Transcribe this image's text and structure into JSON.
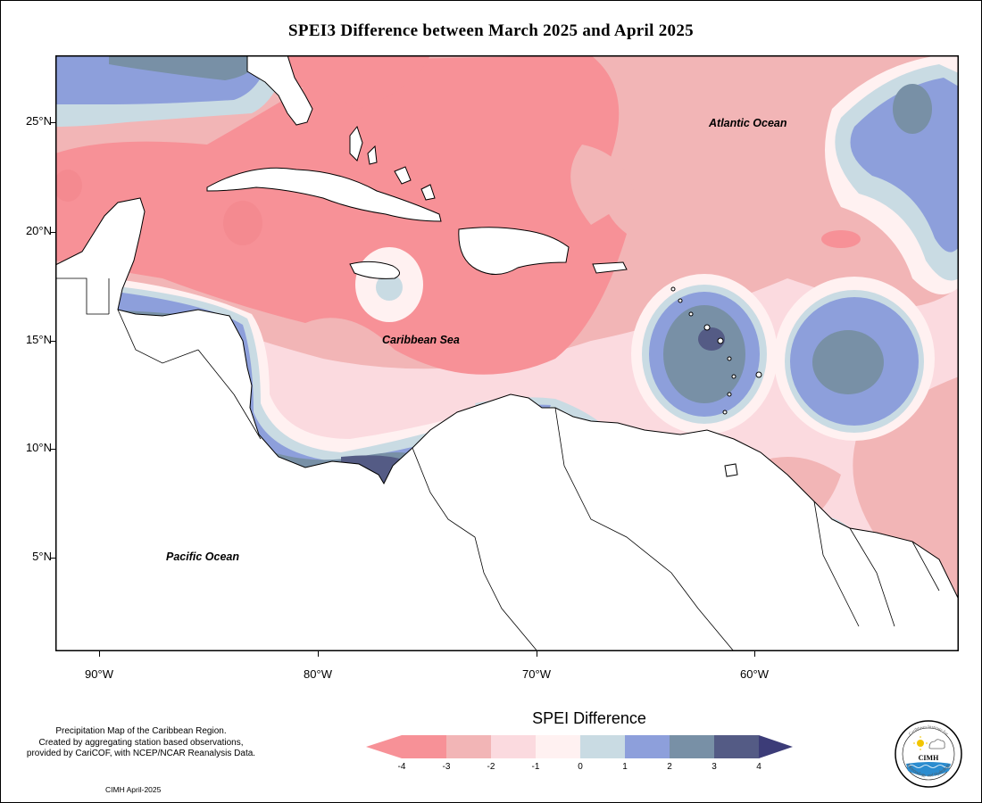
{
  "title": "SPEI3 Difference between March 2025 and April 2025",
  "lat_ticks": [
    "25°N",
    "20°N",
    "15°N",
    "10°N",
    "5°N"
  ],
  "lon_ticks": [
    "90°W",
    "80°W",
    "70°W",
    "60°W"
  ],
  "labels": {
    "atlantic": "Atlantic Ocean",
    "caribbean": "Caribbean Sea",
    "pacific": "Pacific Ocean"
  },
  "legend": {
    "title": "SPEI Difference",
    "ticks": [
      "-4",
      "-3",
      "-2",
      "-1",
      "0",
      "1",
      "2",
      "3",
      "4"
    ],
    "colors": [
      "#f79197",
      "#f2b5b6",
      "#fbdadf",
      "#fff1f1",
      "#c9dbe3",
      "#8d9fdb",
      "#7890a6",
      "#545b85",
      "#3c3c78"
    ]
  },
  "description": [
    "Precipitation Map of the Caribbean Region.",
    "Created by aggregating station based observations,",
    "provided by CariCOF, with NCEP/NCAR Reanalysis Data."
  ],
  "credit": "CIMH April-2025",
  "logo": {
    "top_text": "Caribbean Institute for",
    "center_text": "CIMH",
    "bottom_text": "Meteorology and Hydrology"
  }
}
